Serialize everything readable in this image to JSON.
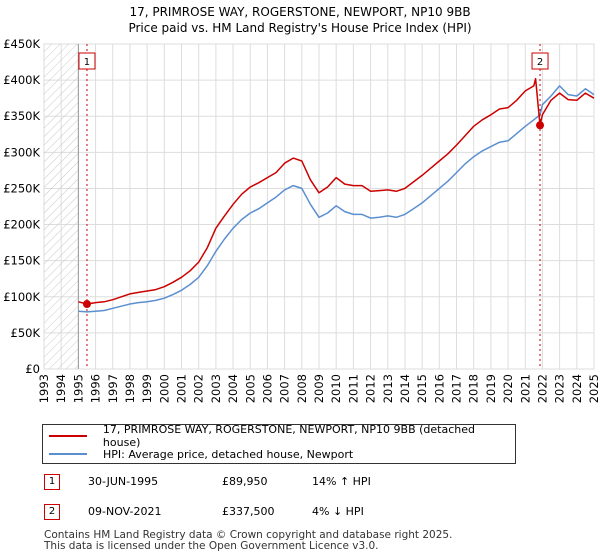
{
  "title": {
    "line1": "17, PRIMROSE WAY, ROGERSTONE, NEWPORT, NP10 9BB",
    "line2": "Price paid vs. HM Land Registry's House Price Index (HPI)"
  },
  "chart_data": {
    "type": "line",
    "title": "Price paid vs. HM Land Registry's House Price Index (HPI)",
    "xlim": [
      1993,
      2025
    ],
    "ylim": [
      0,
      450000
    ],
    "x_ticks": [
      1993,
      1994,
      1995,
      1996,
      1997,
      1998,
      1999,
      2000,
      2001,
      2002,
      2003,
      2004,
      2005,
      2006,
      2007,
      2008,
      2009,
      2010,
      2011,
      2012,
      2013,
      2014,
      2015,
      2016,
      2017,
      2018,
      2019,
      2020,
      2021,
      2022,
      2023,
      2024,
      2025
    ],
    "y_ticks": [
      {
        "value": 0,
        "label": "£0"
      },
      {
        "value": 50000,
        "label": "£50K"
      },
      {
        "value": 100000,
        "label": "£100K"
      },
      {
        "value": 150000,
        "label": "£150K"
      },
      {
        "value": 200000,
        "label": "£200K"
      },
      {
        "value": 250000,
        "label": "£250K"
      },
      {
        "value": 300000,
        "label": "£300K"
      },
      {
        "value": 350000,
        "label": "£350K"
      },
      {
        "value": 400000,
        "label": "£400K"
      },
      {
        "value": 450000,
        "label": "£450K"
      }
    ],
    "grid": true,
    "hatched_region_before": 1995.0,
    "series": [
      {
        "name": "17, PRIMROSE WAY, ROGERSTONE, NEWPORT, NP10 9BB (detached house)",
        "color": "#cc0000",
        "x": [
          1995.0,
          1995.5,
          1996.0,
          1996.5,
          1997.0,
          1997.5,
          1998.0,
          1998.5,
          1999.0,
          1999.5,
          2000.0,
          2000.5,
          2001.0,
          2001.5,
          2002.0,
          2002.5,
          2003.0,
          2003.5,
          2004.0,
          2004.5,
          2005.0,
          2005.5,
          2006.0,
          2006.5,
          2007.0,
          2007.5,
          2008.0,
          2008.5,
          2009.0,
          2009.5,
          2010.0,
          2010.5,
          2011.0,
          2011.5,
          2012.0,
          2012.5,
          2013.0,
          2013.5,
          2014.0,
          2014.5,
          2015.0,
          2015.5,
          2016.0,
          2016.5,
          2017.0,
          2017.5,
          2018.0,
          2018.5,
          2019.0,
          2019.5,
          2020.0,
          2020.5,
          2021.0,
          2021.5,
          2021.6,
          2021.86,
          2022.0,
          2022.5,
          2023.0,
          2023.5,
          2024.0,
          2024.5,
          2025.0
        ],
        "y": [
          93000,
          89950,
          92000,
          93000,
          96000,
          100000,
          104000,
          106000,
          108000,
          110000,
          114000,
          120000,
          127000,
          136000,
          148000,
          168000,
          195000,
          212000,
          228000,
          242000,
          252000,
          258000,
          265000,
          272000,
          285000,
          292000,
          288000,
          262000,
          244000,
          252000,
          265000,
          256000,
          254000,
          254000,
          246000,
          247000,
          248000,
          246000,
          250000,
          259000,
          268000,
          278000,
          288000,
          298000,
          310000,
          323000,
          336000,
          345000,
          352000,
          360000,
          362000,
          372000,
          385000,
          392000,
          402000,
          337500,
          352000,
          372000,
          382000,
          373000,
          372000,
          382000,
          375000
        ]
      },
      {
        "name": "HPI: Average price, detached house, Newport",
        "color": "#5b8fd0",
        "x": [
          1995.0,
          1995.5,
          1996.0,
          1996.5,
          1997.0,
          1997.5,
          1998.0,
          1998.5,
          1999.0,
          1999.5,
          2000.0,
          2000.5,
          2001.0,
          2001.5,
          2002.0,
          2002.5,
          2003.0,
          2003.5,
          2004.0,
          2004.5,
          2005.0,
          2005.5,
          2006.0,
          2006.5,
          2007.0,
          2007.5,
          2008.0,
          2008.5,
          2009.0,
          2009.5,
          2010.0,
          2010.5,
          2011.0,
          2011.5,
          2012.0,
          2012.5,
          2013.0,
          2013.5,
          2014.0,
          2014.5,
          2015.0,
          2015.5,
          2016.0,
          2016.5,
          2017.0,
          2017.5,
          2018.0,
          2018.5,
          2019.0,
          2019.5,
          2020.0,
          2020.5,
          2021.0,
          2021.5,
          2021.86,
          2022.0,
          2022.5,
          2023.0,
          2023.5,
          2024.0,
          2024.5,
          2025.0
        ],
        "y": [
          80000,
          79000,
          80000,
          81000,
          84000,
          87000,
          90000,
          92000,
          93000,
          95000,
          98000,
          103000,
          109000,
          117000,
          127000,
          143000,
          163000,
          180000,
          195000,
          207000,
          216000,
          222000,
          230000,
          238000,
          248000,
          254000,
          250000,
          228000,
          210000,
          216000,
          226000,
          218000,
          214000,
          214000,
          209000,
          210000,
          212000,
          210000,
          214000,
          222000,
          230000,
          240000,
          250000,
          260000,
          272000,
          284000,
          294000,
          302000,
          308000,
          314000,
          316000,
          326000,
          336000,
          345000,
          352000,
          366000,
          378000,
          392000,
          380000,
          378000,
          388000,
          380000
        ]
      }
    ],
    "annotations": [
      {
        "label": "1",
        "x": 1995.5,
        "y": 89950
      },
      {
        "label": "2",
        "x": 2021.86,
        "y": 337500
      }
    ]
  },
  "legend": {
    "items": [
      {
        "label": "17, PRIMROSE WAY, ROGERSTONE, NEWPORT, NP10 9BB (detached house)",
        "color": "#cc0000"
      },
      {
        "label": "HPI: Average price, detached house, Newport",
        "color": "#5b8fd0"
      }
    ]
  },
  "sales": [
    {
      "num": "1",
      "date": "30-JUN-1995",
      "price": "£89,950",
      "hpi": "14% ↑ HPI"
    },
    {
      "num": "2",
      "date": "09-NOV-2021",
      "price": "£337,500",
      "hpi": "4% ↓ HPI"
    }
  ],
  "footer": {
    "line1": "Contains HM Land Registry data © Crown copyright and database right 2025.",
    "line2": "This data is licensed under the Open Government Licence v3.0."
  }
}
